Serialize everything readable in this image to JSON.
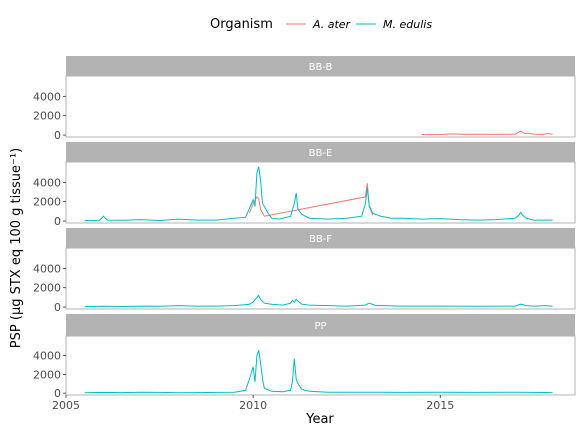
{
  "chart_data": {
    "type": "line",
    "xlabel": "Year",
    "ylabel": "PSP (µg STX eq 100 g tissue⁻¹)",
    "legend": {
      "title": "Organism",
      "position": "top",
      "entries": [
        {
          "name": "A. ater",
          "color": "#F8766D"
        },
        {
          "name": "M. edulis",
          "color": "#00BFC4"
        }
      ]
    },
    "xlim": [
      2005.0,
      2018.6
    ],
    "x_ticks": [
      2005,
      2010,
      2015
    ],
    "ylim": [
      -200,
      6100
    ],
    "y_ticks": [
      0,
      2000,
      4000
    ],
    "facets": [
      {
        "label": "BB-B",
        "series": [
          {
            "name": "A. ater",
            "x": [
              2014.5,
              2015.0,
              2015.3,
              2015.7,
              2016.0,
              2016.5,
              2016.8,
              2017.0,
              2017.15,
              2017.2,
              2017.25,
              2017.35,
              2017.5,
              2017.7,
              2017.9,
              2018.0
            ],
            "y": [
              50,
              60,
              120,
              70,
              80,
              70,
              90,
              100,
              400,
              300,
              150,
              200,
              80,
              70,
              150,
              90
            ]
          }
        ]
      },
      {
        "label": "BB-E",
        "series": [
          {
            "name": "A. ater",
            "x": [
              2009.9,
              2010.0,
              2010.1,
              2010.15,
              2010.2,
              2010.3,
              2013.0,
              2013.05,
              2013.1,
              2013.2
            ],
            "y": [
              800,
              1800,
              2500,
              2300,
              1200,
              500,
              2500,
              3900,
              1500,
              600
            ]
          },
          {
            "name": "M. edulis",
            "x": [
              2005.5,
              2005.9,
              2006.0,
              2006.1,
              2006.5,
              2007.0,
              2007.5,
              2008.0,
              2008.5,
              2009.0,
              2009.5,
              2009.8,
              2009.9,
              2010.0,
              2010.05,
              2010.1,
              2010.15,
              2010.2,
              2010.25,
              2010.3,
              2010.4,
              2010.5,
              2010.7,
              2011.0,
              2011.1,
              2011.15,
              2011.2,
              2011.3,
              2011.5,
              2012.0,
              2012.5,
              2012.9,
              2013.0,
              2013.05,
              2013.1,
              2013.2,
              2013.4,
              2013.7,
              2014.0,
              2014.5,
              2015.0,
              2015.5,
              2016.0,
              2016.5,
              2017.0,
              2017.1,
              2017.15,
              2017.2,
              2017.3,
              2017.5,
              2018.0
            ],
            "y": [
              50,
              80,
              500,
              100,
              80,
              150,
              60,
              200,
              100,
              100,
              300,
              400,
              1300,
              2200,
              1500,
              5000,
              5600,
              4200,
              1800,
              1500,
              800,
              300,
              200,
              500,
              1800,
              2900,
              1200,
              700,
              300,
              200,
              300,
              500,
              1800,
              3400,
              1600,
              800,
              500,
              300,
              300,
              200,
              250,
              150,
              100,
              150,
              300,
              600,
              900,
              600,
              300,
              100,
              100
            ]
          }
        ]
      },
      {
        "label": "BB-F",
        "series": [
          {
            "name": "M. edulis",
            "x": [
              2005.5,
              2006.0,
              2006.5,
              2007.0,
              2007.5,
              2008.0,
              2008.5,
              2009.0,
              2009.5,
              2009.9,
              2010.0,
              2010.1,
              2010.15,
              2010.2,
              2010.3,
              2010.5,
              2010.8,
              2011.0,
              2011.05,
              2011.1,
              2011.15,
              2011.2,
              2011.3,
              2011.5,
              2012.0,
              2012.5,
              2013.0,
              2013.1,
              2013.3,
              2013.5,
              2014.0,
              2015.0,
              2016.0,
              2017.0,
              2017.15,
              2017.2,
              2017.3,
              2017.5,
              2017.8,
              2018.0
            ],
            "y": [
              50,
              80,
              60,
              100,
              80,
              150,
              100,
              100,
              150,
              300,
              500,
              1000,
              1200,
              800,
              400,
              300,
              200,
              400,
              700,
              500,
              800,
              600,
              300,
              200,
              150,
              100,
              200,
              400,
              150,
              150,
              100,
              100,
              80,
              100,
              300,
              250,
              150,
              100,
              150,
              100
            ]
          }
        ]
      },
      {
        "label": "PP",
        "series": [
          {
            "name": "M. edulis",
            "x": [
              2005.5,
              2006.0,
              2006.5,
              2007.0,
              2007.5,
              2008.0,
              2008.5,
              2009.0,
              2009.5,
              2009.8,
              2009.9,
              2010.0,
              2010.05,
              2010.1,
              2010.15,
              2010.2,
              2010.25,
              2010.3,
              2010.5,
              2010.8,
              2011.0,
              2011.05,
              2011.1,
              2011.15,
              2011.2,
              2011.3,
              2011.5,
              2012.0,
              2013.0,
              2014.0,
              2015.0,
              2016.0,
              2017.0,
              2017.5,
              2018.0
            ],
            "y": [
              50,
              80,
              60,
              100,
              80,
              50,
              60,
              80,
              100,
              300,
              1500,
              2800,
              1200,
              4000,
              4600,
              3200,
              1500,
              500,
              200,
              150,
              300,
              1200,
              3700,
              1500,
              1000,
              400,
              200,
              100,
              100,
              80,
              100,
              80,
              100,
              80,
              60
            ]
          }
        ]
      }
    ]
  }
}
